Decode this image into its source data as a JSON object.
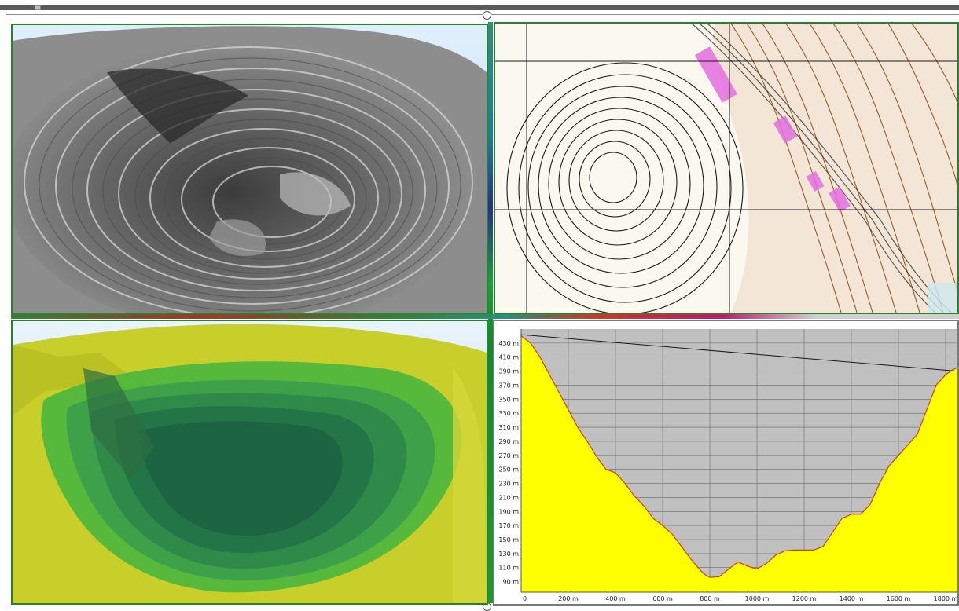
{
  "window": {
    "accent": "#2f7d32"
  },
  "panels": [
    {
      "id": "pit-photo",
      "icon": "open-pit-hillshade-image"
    },
    {
      "id": "contour-map",
      "icon": "topographic-contour-map"
    },
    {
      "id": "pit-3d",
      "icon": "colored-3d-terrain-model"
    },
    {
      "id": "profile",
      "icon": "elevation-profile-chart"
    }
  ],
  "chart_data": {
    "type": "area",
    "xlabel": "",
    "ylabel": "",
    "x_tick_labels": [
      "0",
      "200 m",
      "400 m",
      "600 m",
      "800 m",
      "1000 m",
      "1200 m",
      "1400 m",
      "1600 m",
      "1800 m"
    ],
    "y_tick_labels": [
      "90 m",
      "110 m",
      "130 m",
      "150 m",
      "170 m",
      "190 m",
      "210 m",
      "230 m",
      "250 m",
      "270 m",
      "290 m",
      "310 m",
      "330 m",
      "350 m",
      "370 m",
      "390 m",
      "410 m",
      "430 m"
    ],
    "xlim": [
      0,
      1850
    ],
    "ylim": [
      75,
      450
    ],
    "grid": true,
    "colors": {
      "ground": "#ffff00",
      "air": "#c0c0c0",
      "profile_line": "#d04020",
      "sight_line": "#1a1a1a"
    },
    "series": [
      {
        "x": [
          0,
          40,
          80,
          120,
          160,
          200,
          240,
          280,
          320,
          360,
          400,
          440,
          480,
          520,
          560,
          600,
          640,
          680,
          720,
          760,
          780,
          800,
          840,
          880,
          920,
          960,
          1000,
          1040,
          1080,
          1120,
          1160,
          1200,
          1240,
          1280,
          1320,
          1360,
          1400,
          1440,
          1480,
          1520,
          1560,
          1600,
          1640,
          1680,
          1720,
          1760,
          1800,
          1830,
          1850
        ],
        "values": [
          440,
          430,
          410,
          385,
          360,
          335,
          310,
          290,
          268,
          250,
          245,
          230,
          212,
          198,
          180,
          170,
          158,
          140,
          122,
          106,
          100,
          96,
          97,
          108,
          118,
          112,
          108,
          116,
          128,
          134,
          135,
          135,
          135,
          140,
          160,
          180,
          186,
          186,
          200,
          230,
          255,
          270,
          285,
          300,
          335,
          370,
          385,
          392,
          395
        ]
      },
      {
        "x": [
          0,
          1850
        ],
        "values": [
          442,
          390
        ]
      }
    ]
  }
}
